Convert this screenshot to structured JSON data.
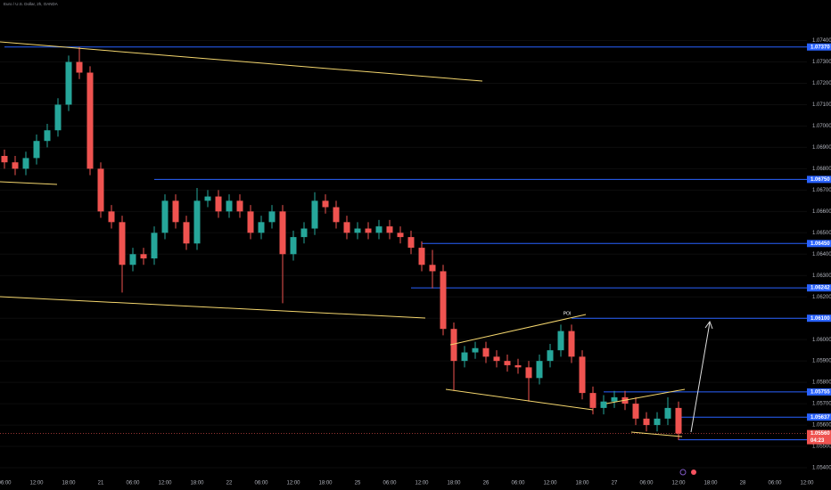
{
  "chart_data": {
    "type": "candlestick",
    "title": "Euro / U.S. Dollar, 2h, OANDA",
    "categories": [
      "06:00",
      null,
      null,
      "12:00",
      null,
      null,
      "18:00",
      null,
      null,
      "21",
      null,
      null,
      "06:00",
      null,
      null,
      "12:00",
      null,
      null,
      "18:00",
      null,
      null,
      "22",
      null,
      null,
      "06:00",
      null,
      null,
      "12:00",
      null,
      null,
      "18:00",
      null,
      null,
      "25",
      null,
      null,
      "06:00",
      null,
      null,
      "12:00",
      null,
      null,
      "18:00",
      null,
      null,
      "26",
      null,
      null,
      "06:00",
      null,
      null,
      "12:00",
      null,
      null,
      "18:00",
      null,
      null,
      "27",
      null,
      null,
      "06:00",
      null,
      null,
      "12:00",
      null,
      null,
      "18:00",
      null,
      null,
      "28",
      null,
      null,
      "06:00",
      null,
      null,
      "12:00",
      null,
      null
    ],
    "open": [
      1.0686,
      1.0683,
      1.068,
      1.0685,
      1.0693,
      1.0698,
      1.071,
      1.073,
      1.0725,
      1.068,
      1.066,
      1.0655,
      1.0635,
      1.064,
      1.0638,
      1.065,
      1.0665,
      1.0655,
      1.0645,
      1.0665,
      1.0667,
      1.066,
      1.0665,
      1.066,
      1.065,
      1.0655,
      1.066,
      1.064,
      1.0648,
      1.0652,
      1.0665,
      1.0662,
      1.0655,
      1.065,
      1.0652,
      1.065,
      1.0653,
      1.065,
      1.0648,
      1.0643,
      1.0635,
      1.0632,
      1.0605,
      1.059,
      1.0594,
      1.0596,
      1.0592,
      1.059,
      1.0588,
      1.0587,
      1.0582,
      1.059,
      1.0595,
      1.0604,
      1.0592,
      1.0575,
      1.0568,
      1.0571,
      1.0573,
      1.057,
      1.0563,
      1.056,
      1.0563,
      1.0568,
      null,
      null,
      null,
      null,
      null,
      null,
      null,
      null,
      null,
      null,
      null,
      null,
      null,
      null
    ],
    "high": [
      1.0689,
      1.0686,
      1.0688,
      1.0696,
      1.0701,
      1.0713,
      1.0733,
      1.0737,
      1.0728,
      1.0683,
      1.0663,
      1.0658,
      1.0643,
      1.0643,
      1.0653,
      1.0668,
      1.0668,
      1.0658,
      1.0671,
      1.067,
      1.067,
      1.0668,
      1.0668,
      1.0663,
      1.0658,
      1.0663,
      1.0663,
      1.0651,
      1.0655,
      1.0669,
      1.0668,
      1.0665,
      1.0658,
      1.0655,
      1.0655,
      1.0656,
      1.0656,
      1.0653,
      1.0651,
      1.0646,
      1.0642,
      1.0635,
      1.0608,
      1.0597,
      1.0599,
      1.0599,
      1.0595,
      1.0593,
      1.0591,
      1.059,
      1.0593,
      1.0598,
      1.0607,
      1.0607,
      1.0595,
      1.0578,
      1.0574,
      1.0576,
      1.0576,
      1.0573,
      1.0566,
      1.0566,
      1.0573,
      1.0571,
      null,
      null,
      null,
      null,
      null,
      null,
      null,
      null,
      null,
      null,
      null,
      null,
      null,
      null
    ],
    "low": [
      1.068,
      1.0677,
      1.0677,
      1.0682,
      1.069,
      1.0695,
      1.0707,
      1.0722,
      1.0677,
      1.0657,
      1.0652,
      1.0622,
      1.0632,
      1.0635,
      1.0635,
      1.0647,
      1.0652,
      1.0642,
      1.0642,
      1.0662,
      1.0657,
      1.0657,
      1.0657,
      1.0647,
      1.0647,
      1.0652,
      1.0617,
      1.0637,
      1.0645,
      1.0649,
      1.0659,
      1.0652,
      1.0647,
      1.0647,
      1.0647,
      1.0647,
      1.0647,
      1.0645,
      1.064,
      1.0632,
      1.0624,
      1.0602,
      1.0576,
      1.0587,
      1.0591,
      1.0589,
      1.0587,
      1.0585,
      1.0584,
      1.0571,
      1.0579,
      1.0587,
      1.0592,
      1.0589,
      1.0572,
      1.0565,
      1.0565,
      1.0568,
      1.0567,
      1.056,
      1.0557,
      1.0557,
      1.056,
      1.0553,
      null,
      null,
      null,
      null,
      null,
      null,
      null,
      null,
      null,
      null,
      null,
      null,
      null,
      null
    ],
    "close": [
      1.0683,
      1.068,
      1.0685,
      1.0693,
      1.0698,
      1.071,
      1.073,
      1.0725,
      1.068,
      1.066,
      1.0655,
      1.0635,
      1.064,
      1.0638,
      1.065,
      1.0665,
      1.0655,
      1.0645,
      1.0665,
      1.0667,
      1.066,
      1.0665,
      1.066,
      1.065,
      1.0655,
      1.066,
      1.064,
      1.0648,
      1.0652,
      1.0665,
      1.0662,
      1.0655,
      1.065,
      1.0652,
      1.065,
      1.0653,
      1.065,
      1.0648,
      1.0643,
      1.0635,
      1.0632,
      1.0605,
      1.059,
      1.0594,
      1.0596,
      1.0592,
      1.059,
      1.0588,
      1.0587,
      1.0582,
      1.059,
      1.0595,
      1.0604,
      1.0592,
      1.0575,
      1.0568,
      1.0571,
      1.0573,
      1.057,
      1.0563,
      1.056,
      1.0563,
      1.0568,
      1.0556,
      null,
      null,
      null,
      null,
      null,
      null,
      null,
      null,
      null,
      null,
      null,
      null,
      null,
      null
    ],
    "up_color": "#26a69a",
    "down_color": "#ef5350",
    "ylim": [
      1.0535,
      1.0759
    ],
    "yticks": [
      {
        "value": 1.054,
        "label": "1.05400"
      },
      {
        "value": 1.055,
        "label": "1.05500"
      },
      {
        "value": 1.056,
        "label": "1.05600"
      },
      {
        "value": 1.057,
        "label": "1.05700"
      },
      {
        "value": 1.058,
        "label": "1.05800"
      },
      {
        "value": 1.059,
        "label": "1.05900"
      },
      {
        "value": 1.06,
        "label": "1.06000"
      },
      {
        "value": 1.061,
        "label": "1.06100"
      },
      {
        "value": 1.062,
        "label": "1.06200"
      },
      {
        "value": 1.063,
        "label": "1.06300"
      },
      {
        "value": 1.064,
        "label": "1.06400"
      },
      {
        "value": 1.065,
        "label": "1.06500"
      },
      {
        "value": 1.066,
        "label": "1.06600"
      },
      {
        "value": 1.067,
        "label": "1.06700"
      },
      {
        "value": 1.068,
        "label": "1.06800"
      },
      {
        "value": 1.069,
        "label": "1.06900"
      },
      {
        "value": 1.07,
        "label": "1.07000"
      },
      {
        "value": 1.071,
        "label": "1.07100"
      },
      {
        "value": 1.072,
        "label": "1.07200"
      },
      {
        "value": 1.073,
        "label": "1.07300"
      },
      {
        "value": 1.074,
        "label": "1.07400"
      }
    ],
    "levels": [
      {
        "value": 1.0737,
        "label": "1.07370"
      },
      {
        "value": 1.0675,
        "label": "1.06750"
      },
      {
        "value": 1.0645,
        "label": "1.06450"
      },
      {
        "value": 1.06242,
        "label": "1.06242"
      },
      {
        "value": 1.061,
        "label": "1.06100"
      },
      {
        "value": 1.05755,
        "label": "1.05755"
      },
      {
        "value": 1.05637,
        "label": "1.05637"
      },
      {
        "value": 1.05531,
        "label": "1.05531"
      }
    ],
    "level_color": "#2962ff",
    "last_price": {
      "value": 1.0556,
      "label": "1.05560"
    },
    "countdown": "04:23",
    "annotations": [
      "POI"
    ],
    "grid": true
  }
}
